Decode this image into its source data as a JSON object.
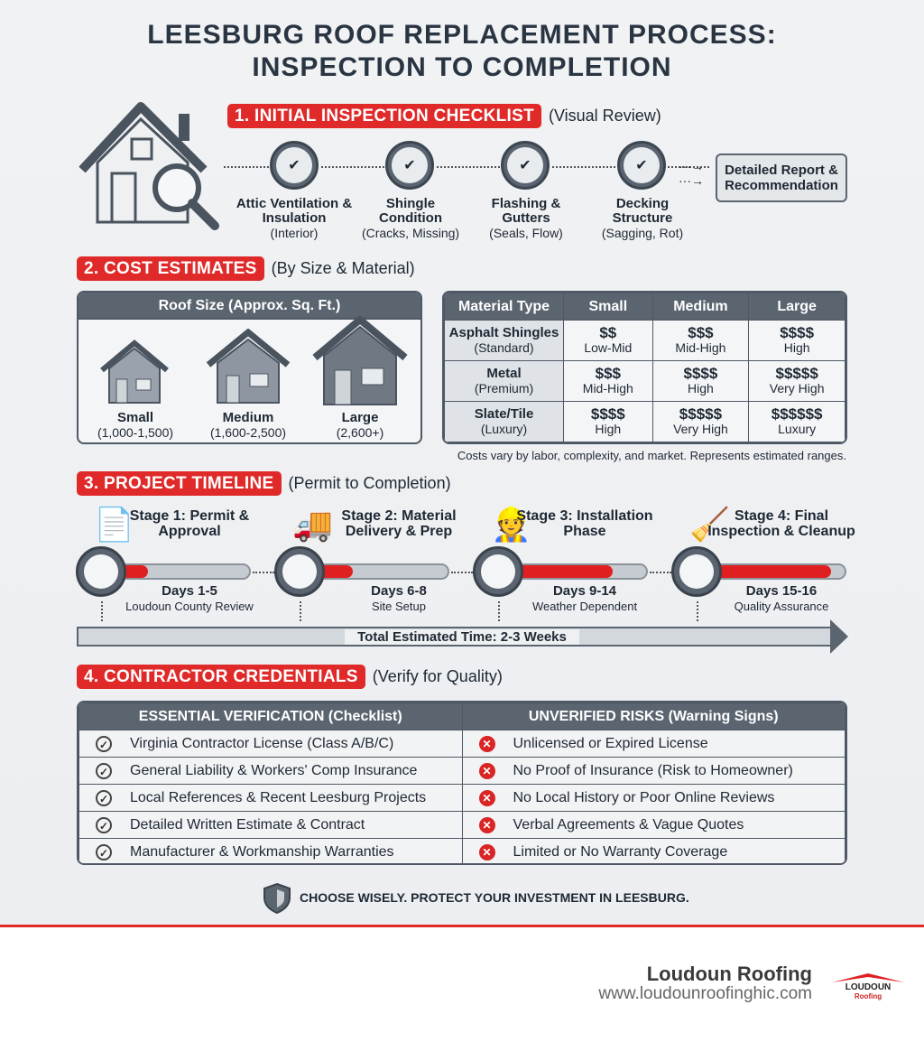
{
  "title": {
    "line1": "LEESBURG ROOF REPLACEMENT PROCESS:",
    "line2": "INSPECTION TO COMPLETION"
  },
  "section1": {
    "label": "1. INITIAL INSPECTION CHECKLIST",
    "sub": "(Visual Review)",
    "items": [
      {
        "title": "Attic Ventilation & Insulation",
        "note": "(Interior)"
      },
      {
        "title": "Shingle Condition",
        "note": "(Cracks, Missing)"
      },
      {
        "title": "Flashing & Gutters",
        "note": "(Seals, Flow)"
      },
      {
        "title": "Decking Structure",
        "note": "(Sagging, Rot)"
      }
    ],
    "result": "Detailed Report & Recommendation"
  },
  "section2": {
    "label": "2. COST ESTIMATES",
    "sub": "(By Size & Material)",
    "size_header": "Roof Size (Approx. Sq. Ft.)",
    "sizes": [
      {
        "name": "Small",
        "range": "(1,000-1,500)"
      },
      {
        "name": "Medium",
        "range": "(1,600-2,500)"
      },
      {
        "name": "Large",
        "range": "(2,600+)"
      }
    ],
    "table": {
      "headers": [
        "Material Type",
        "Small",
        "Medium",
        "Large"
      ],
      "rows": [
        {
          "material": "Asphalt Shingles",
          "grade": "(Standard)",
          "cells": [
            [
              "$$",
              "Low-Mid"
            ],
            [
              "$$$",
              "Mid-High"
            ],
            [
              "$$$$",
              "High"
            ]
          ]
        },
        {
          "material": "Metal",
          "grade": "(Premium)",
          "cells": [
            [
              "$$$",
              "Mid-High"
            ],
            [
              "$$$$",
              "High"
            ],
            [
              "$$$$$",
              "Very High"
            ]
          ]
        },
        {
          "material": "Slate/Tile",
          "grade": "(Luxury)",
          "cells": [
            [
              "$$$$",
              "High"
            ],
            [
              "$$$$$",
              "Very High"
            ],
            [
              "$$$$$$",
              "Luxury"
            ]
          ]
        }
      ]
    },
    "note": "Costs vary by labor, complexity, and market. Represents estimated ranges."
  },
  "section3": {
    "label": "3. PROJECT TIMELINE",
    "sub": "(Permit to Completion)",
    "stages": [
      {
        "title": "Stage 1: Permit & Approval",
        "days": "Days 1-5",
        "note": "Loudoun County Review",
        "progress": 0.25,
        "icon": "permit-stamp-icon"
      },
      {
        "title": "Stage 2: Material Delivery & Prep",
        "days": "Days 6-8",
        "note": "Site Setup",
        "progress": 0.3,
        "icon": "delivery-truck-icon"
      },
      {
        "title": "Stage 3: Installation Phase",
        "days": "Days 9-14",
        "note": "Weather Dependent",
        "progress": 0.75,
        "icon": "roofers-icon"
      },
      {
        "title": "Stage 4: Final Inspection & Cleanup",
        "days": "Days 15-16",
        "note": "Quality Assurance",
        "progress": 0.9,
        "icon": "clipboard-broom-icon"
      }
    ],
    "total": "Total Estimated Time: 2-3 Weeks"
  },
  "section4": {
    "label": "4. CONTRACTOR CREDENTIALS",
    "sub": "(Verify for Quality)",
    "headers": [
      "ESSENTIAL VERIFICATION (Checklist)",
      "UNVERIFIED RISKS (Warning Signs)"
    ],
    "rows": [
      [
        "Virginia Contractor License (Class A/B/C)",
        "Unlicensed or Expired License"
      ],
      [
        "General Liability & Workers' Comp Insurance",
        "No Proof of Insurance (Risk to Homeowner)"
      ],
      [
        "Local References & Recent Leesburg Projects",
        "No Local History or Poor Online Reviews"
      ],
      [
        "Detailed Written Estimate & Contract",
        "Verbal Agreements & Vague Quotes"
      ],
      [
        "Manufacturer & Workmanship Warranties",
        "Limited or No Warranty Coverage"
      ]
    ]
  },
  "footer": {
    "tagline": "CHOOSE WISELY. PROTECT YOUR INVESTMENT IN LEESBURG.",
    "brand": "Loudoun Roofing",
    "url": "www.loudounroofinghic.com",
    "logo_text": "LOUDOUN Roofing"
  },
  "colors": {
    "accent": "#e02a2a",
    "slate": "#5b6570",
    "background": "#eef0f2"
  }
}
